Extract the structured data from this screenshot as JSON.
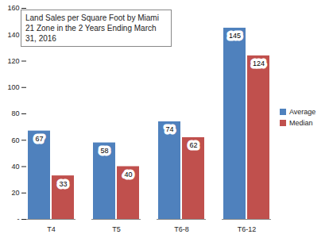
{
  "chart_data": {
    "type": "bar",
    "title": "Land Sales per Square Foot by Miami 21 Zone in the 2 Years Ending March 31, 2016",
    "categories": [
      "T4",
      "T5",
      "T6-8",
      "T6-12"
    ],
    "series": [
      {
        "name": "Average",
        "color": "#4f81bd",
        "values": [
          67,
          58,
          74,
          145
        ]
      },
      {
        "name": "Median",
        "color": "#c0504d",
        "values": [
          33,
          40,
          62,
          124
        ]
      }
    ],
    "ylim": [
      0,
      160
    ],
    "yticks": [
      {
        "value": 0,
        "label": "-"
      },
      20,
      40,
      60,
      80,
      100,
      120,
      140,
      160
    ],
    "grid": false,
    "legend": "right",
    "data_labels": true
  }
}
